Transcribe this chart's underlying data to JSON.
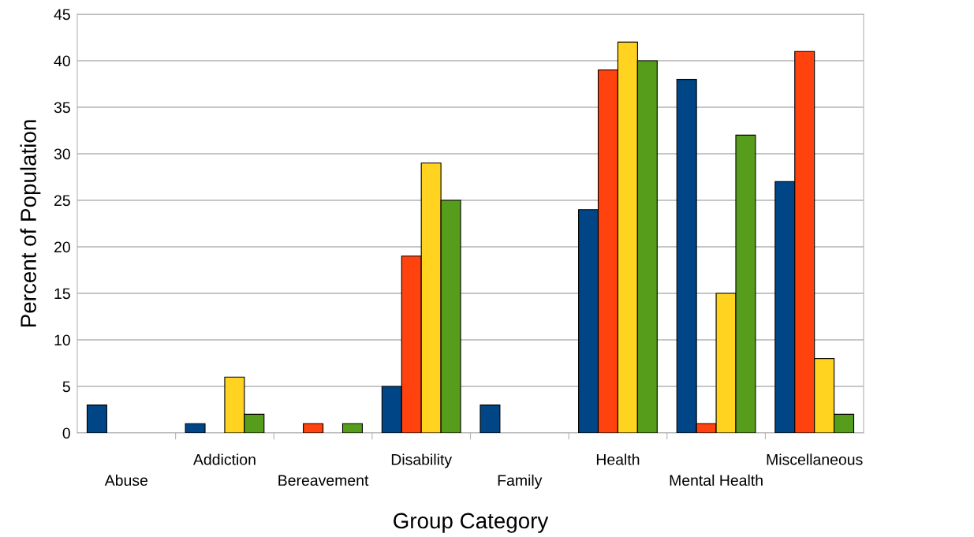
{
  "chart_data": {
    "type": "bar",
    "xlabel": "Group Category",
    "ylabel": "Percent of Population",
    "categories": [
      "Abuse",
      "Addiction",
      "Bereavement",
      "Disability",
      "Family",
      "Health",
      "Mental Health",
      "Miscellaneous"
    ],
    "series": [
      {
        "color": "#004586",
        "values": [
          3,
          1,
          0,
          5,
          3,
          24,
          38,
          27
        ]
      },
      {
        "color": "#ff420e",
        "values": [
          0,
          0,
          1,
          19,
          0,
          39,
          1,
          41
        ]
      },
      {
        "color": "#ffd320",
        "values": [
          0,
          6,
          0,
          29,
          0,
          42,
          15,
          8
        ]
      },
      {
        "color": "#579d1c",
        "values": [
          0,
          2,
          1,
          25,
          0,
          40,
          32,
          2
        ]
      }
    ],
    "ylim": [
      0,
      45
    ],
    "yticks": [
      0,
      5,
      10,
      15,
      20,
      25,
      30,
      35,
      40,
      45
    ],
    "grid": "y"
  }
}
